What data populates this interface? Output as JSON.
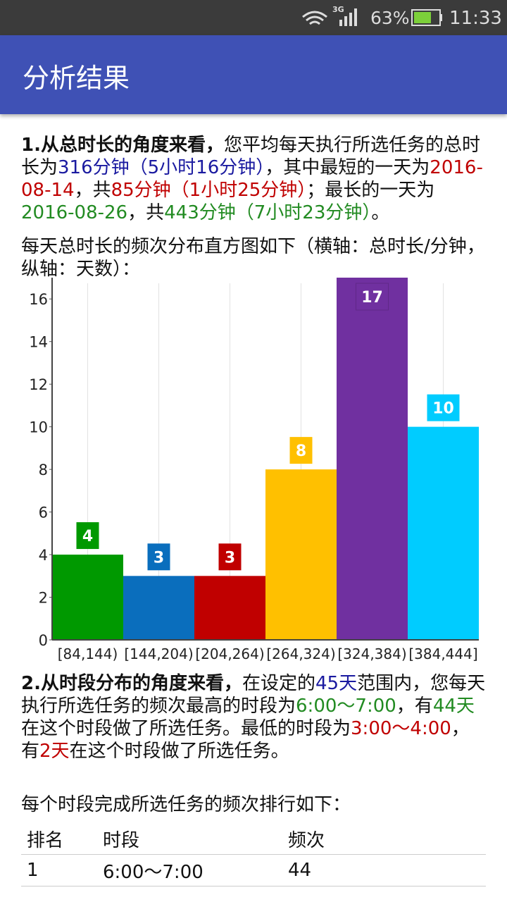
{
  "status_bar": {
    "network": "3G",
    "battery": "63%",
    "time": "11:33"
  },
  "app_bar": {
    "title": "分析结果"
  },
  "section1": {
    "runs": [
      {
        "text": "1.从总时长的角度来看，",
        "bold": true
      },
      {
        "text": "您平均每天执行所选任务的总时长为"
      },
      {
        "text": "316分钟（5小时16分钟）",
        "color": "#1a1aa0"
      },
      {
        "text": "，其中最短的一天为"
      },
      {
        "text": "2016-08-14",
        "color": "#c00000"
      },
      {
        "text": "，共"
      },
      {
        "text": "85分钟（1小时25分钟）",
        "color": "#c00000"
      },
      {
        "text": "；最长的一天为"
      },
      {
        "text": "2016-08-26",
        "color": "#228b22"
      },
      {
        "text": "，共"
      },
      {
        "text": "443分钟（7小时23分钟）",
        "color": "#228b22"
      },
      {
        "text": "。"
      }
    ],
    "caption": "每天总时长的频次分布直方图如下（横轴：总时长/分钟，纵轴：天数）："
  },
  "chart_data": {
    "type": "bar",
    "categories": [
      "[84,144)",
      "[144,204)",
      "[204,264)",
      "[264,324)",
      "[324,384)",
      "[384,444]"
    ],
    "values": [
      4,
      3,
      3,
      8,
      17,
      10
    ],
    "colors": [
      "#009900",
      "#0a6ebd",
      "#c00000",
      "#ffc000",
      "#7030a0",
      "#00ccff"
    ],
    "ylim": [
      0,
      17
    ],
    "yticks": [
      0,
      2,
      4,
      6,
      8,
      10,
      12,
      14,
      16
    ]
  },
  "section2": {
    "runs": [
      {
        "text": "2.从时段分布的角度来看，",
        "bold": true
      },
      {
        "text": "在设定的"
      },
      {
        "text": "45天",
        "color": "#1a1aa0"
      },
      {
        "text": "范围内，您每天执行所选任务的频次最高的时段为"
      },
      {
        "text": "6:00～7:00",
        "color": "#228b22"
      },
      {
        "text": "，有"
      },
      {
        "text": "44天",
        "color": "#228b22"
      },
      {
        "text": "在这个时段做了所选任务。最低的时段为"
      },
      {
        "text": "3:00～4:00",
        "color": "#c00000"
      },
      {
        "text": "，有"
      },
      {
        "text": "2天",
        "color": "#c00000"
      },
      {
        "text": "在这个时段做了所选任务。"
      }
    ],
    "caption": "每个时段完成所选任务的频次排行如下："
  },
  "table": {
    "header": [
      "排名",
      "时段",
      "频次"
    ],
    "rows": [
      [
        "1",
        "6:00～7:00",
        "44"
      ]
    ]
  }
}
